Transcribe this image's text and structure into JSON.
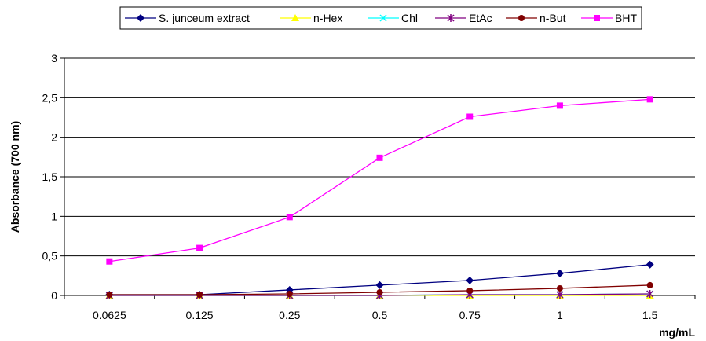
{
  "chart_data": {
    "type": "line",
    "title": "",
    "xlabel": "mg/mL",
    "ylabel": "Absorbance (700 nm)",
    "categories": [
      "0.0625",
      "0.125",
      "0.25",
      "0.5",
      "0.75",
      "1",
      "1.5"
    ],
    "ylim": [
      0,
      3
    ],
    "yticks": [
      0,
      0.5,
      1,
      1.5,
      2,
      2.5,
      3
    ],
    "ytick_labels": [
      "0",
      "0,5",
      "1",
      "1,5",
      "2",
      "2,5",
      "3"
    ],
    "grid": true,
    "legend_position": "top",
    "series": [
      {
        "name": "S. junceum extract",
        "color": "#000080",
        "marker": "diamond",
        "values": [
          0.01,
          0.01,
          0.07,
          0.13,
          0.19,
          0.28,
          0.39
        ]
      },
      {
        "name": "n-Hex",
        "color": "#FFFF00",
        "marker": "triangle",
        "values": [
          0.0,
          0.0,
          0.0,
          0.0,
          0.0,
          0.0,
          0.0
        ]
      },
      {
        "name": "Chl",
        "color": "#00FFFF",
        "marker": "x",
        "values": [
          0.0,
          0.0,
          0.0,
          0.0,
          0.01,
          0.01,
          0.02
        ]
      },
      {
        "name": "EtAc",
        "color": "#800080",
        "marker": "star",
        "values": [
          0.0,
          0.0,
          0.0,
          0.0,
          0.01,
          0.01,
          0.02
        ]
      },
      {
        "name": "n-But",
        "color": "#800000",
        "marker": "circle",
        "values": [
          0.01,
          0.01,
          0.02,
          0.04,
          0.06,
          0.09,
          0.13
        ]
      },
      {
        "name": "BHT",
        "color": "#FF00FF",
        "marker": "square",
        "values": [
          0.43,
          0.6,
          0.99,
          1.74,
          2.26,
          2.4,
          2.48
        ]
      }
    ]
  }
}
